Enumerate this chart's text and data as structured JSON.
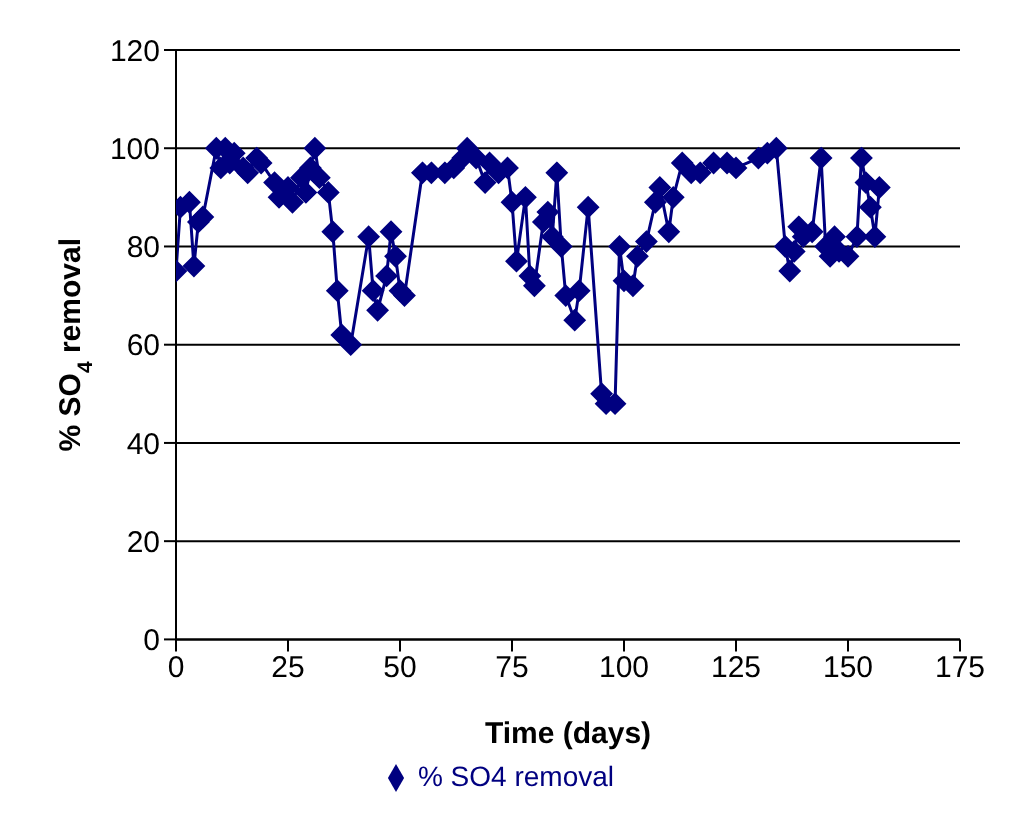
{
  "chart_data": {
    "type": "line",
    "xlabel": "Time (days)",
    "ylabel": "% SO$_{4}$ removal",
    "xlim": [
      0,
      175
    ],
    "xticks": [
      0,
      25,
      50,
      75,
      100,
      125,
      150,
      175
    ],
    "ylim": [
      0,
      120
    ],
    "yticks": [
      0,
      20,
      40,
      60,
      80,
      100,
      120
    ],
    "grid": "y",
    "legend": "bottom",
    "marker": "diamond",
    "line_style": "solid",
    "x": [
      0,
      1,
      3,
      4,
      5,
      6,
      9,
      10,
      11,
      12,
      13,
      15,
      16,
      18,
      19,
      22,
      23,
      25,
      26,
      28,
      29,
      30,
      31,
      32,
      34,
      35,
      36,
      37,
      39,
      43,
      44,
      45,
      47,
      48,
      49,
      50,
      51,
      55,
      57,
      60,
      62,
      64,
      65,
      67,
      69,
      70,
      72,
      74,
      75,
      76,
      78,
      79,
      80,
      82,
      83,
      84,
      85,
      86,
      87,
      89,
      90,
      92,
      95,
      96,
      98,
      99,
      100,
      102,
      103,
      105,
      107,
      108,
      110,
      111,
      113,
      115,
      117,
      120,
      123,
      125,
      130,
      132,
      134,
      136,
      137,
      138,
      139,
      140,
      142,
      144,
      145,
      146,
      147,
      148,
      150,
      152,
      153,
      154,
      155,
      156,
      157
    ],
    "series": [
      {
        "name": "% SO4 removal",
        "color": "#000080",
        "values": [
          75,
          88,
          89,
          76,
          85,
          86,
          100,
          96,
          100,
          97,
          99,
          96,
          95,
          98,
          97,
          93,
          90,
          92,
          89,
          94,
          91,
          96,
          100,
          94,
          91,
          83,
          71,
          62,
          60,
          82,
          71,
          67,
          74,
          83,
          78,
          71,
          70,
          95,
          95,
          95,
          96,
          98,
          100,
          98,
          93,
          97,
          95,
          96,
          89,
          77,
          90,
          74,
          72,
          85,
          87,
          82,
          95,
          80,
          70,
          65,
          71,
          88,
          50,
          48,
          48,
          80,
          73,
          72,
          78,
          81,
          89,
          92,
          83,
          90,
          97,
          95,
          95,
          97,
          97,
          96,
          98,
          99,
          100,
          80,
          75,
          79,
          84,
          82,
          83,
          98,
          80,
          78,
          82,
          79,
          78,
          82,
          98,
          93,
          88,
          82,
          92
        ]
      }
    ]
  }
}
